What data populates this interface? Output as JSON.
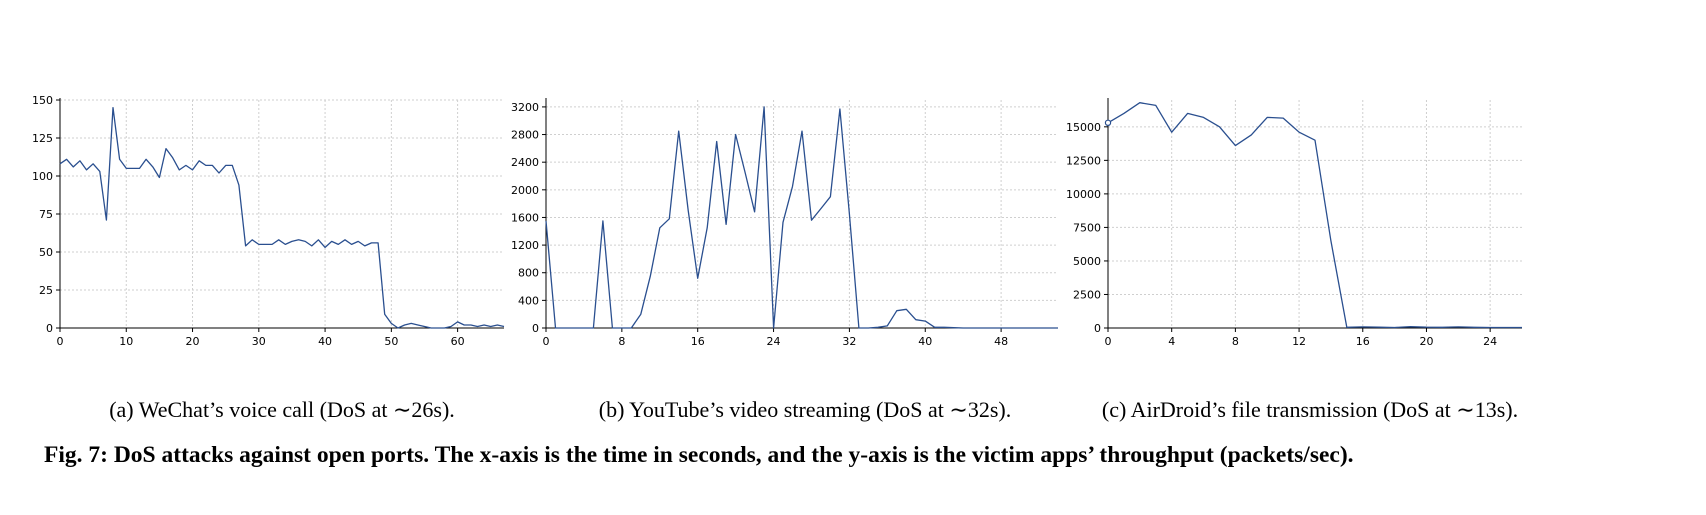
{
  "chart_data": [
    {
      "type": "line",
      "caption": "(a) WeChat’s voice call (DoS at ∼26s).",
      "xlim": [
        0,
        67
      ],
      "ylim": [
        0,
        150
      ],
      "xticks": [
        0,
        10,
        20,
        30,
        40,
        50,
        60
      ],
      "yticks": [
        0,
        25,
        50,
        75,
        100,
        125,
        150
      ],
      "grid": true,
      "start_marker": false,
      "x": [
        0,
        1,
        2,
        3,
        4,
        5,
        6,
        7,
        8,
        9,
        10,
        11,
        12,
        13,
        14,
        15,
        16,
        17,
        18,
        19,
        20,
        21,
        22,
        23,
        24,
        25,
        26,
        27,
        28,
        29,
        30,
        31,
        32,
        33,
        34,
        35,
        36,
        37,
        38,
        39,
        40,
        41,
        42,
        43,
        44,
        45,
        46,
        47,
        48,
        49,
        50,
        51,
        52,
        53,
        54,
        55,
        56,
        57,
        58,
        59,
        60,
        61,
        62,
        63,
        64,
        65,
        66,
        67
      ],
      "y": [
        108,
        111,
        106,
        110,
        104,
        108,
        103,
        71,
        145,
        111,
        105,
        105,
        105,
        111,
        106,
        99,
        118,
        112,
        104,
        107,
        104,
        110,
        107,
        107,
        102,
        107,
        107,
        94,
        54,
        58,
        55,
        55,
        55,
        58,
        55,
        57,
        58,
        57,
        54,
        58,
        53,
        57,
        55,
        58,
        55,
        57,
        54,
        56,
        56,
        9,
        3,
        0,
        2,
        3,
        2,
        1,
        0,
        0,
        0,
        1,
        4,
        2,
        2,
        1,
        2,
        1,
        2,
        1
      ]
    },
    {
      "type": "line",
      "caption": "(b) YouTube’s video streaming (DoS at ∼32s).",
      "xlim": [
        0,
        54
      ],
      "ylim": [
        0,
        3300
      ],
      "xticks": [
        0,
        8,
        16,
        24,
        32,
        40,
        48
      ],
      "yticks": [
        0,
        400,
        800,
        1200,
        1600,
        2000,
        2400,
        2800,
        3200
      ],
      "grid": true,
      "start_marker": false,
      "x": [
        0,
        1,
        2,
        3,
        4,
        5,
        6,
        7,
        8,
        9,
        10,
        11,
        12,
        13,
        14,
        15,
        16,
        17,
        18,
        19,
        20,
        21,
        22,
        23,
        24,
        25,
        26,
        27,
        28,
        29,
        30,
        31,
        32,
        33,
        34,
        35,
        36,
        37,
        38,
        39,
        40,
        41,
        42,
        43,
        44,
        45,
        46,
        47,
        48,
        49,
        50,
        51,
        52,
        53,
        54
      ],
      "y": [
        1550,
        0,
        0,
        0,
        0,
        0,
        1550,
        0,
        0,
        0,
        200,
        750,
        1450,
        1580,
        2850,
        1700,
        720,
        1450,
        2700,
        1500,
        2800,
        2250,
        1680,
        3200,
        0,
        1530,
        2050,
        2850,
        1560,
        1730,
        1900,
        3170,
        1650,
        0,
        0,
        10,
        30,
        250,
        270,
        120,
        100,
        10,
        10,
        5,
        0,
        0,
        0,
        0,
        0,
        0,
        0,
        0,
        0,
        0,
        0
      ]
    },
    {
      "type": "line",
      "caption": "(c) AirDroid’s file transmission (DoS at ∼13s).",
      "xlim": [
        0,
        26
      ],
      "ylim": [
        0,
        17000
      ],
      "xticks": [
        0,
        4,
        8,
        12,
        16,
        20,
        24
      ],
      "yticks": [
        0,
        2500,
        5000,
        7500,
        10000,
        12500,
        15000
      ],
      "grid": true,
      "start_marker": true,
      "x": [
        0,
        1,
        2,
        3,
        4,
        5,
        6,
        7,
        8,
        9,
        10,
        11,
        12,
        13,
        14,
        15,
        16,
        17,
        18,
        19,
        20,
        21,
        22,
        23,
        24,
        25,
        26
      ],
      "y": [
        15300,
        16000,
        16800,
        16600,
        14600,
        16000,
        15700,
        15000,
        13600,
        14400,
        15700,
        15650,
        14600,
        14000,
        6500,
        50,
        80,
        60,
        40,
        100,
        60,
        50,
        80,
        50,
        40,
        40,
        40
      ]
    }
  ],
  "figure_caption": "Fig. 7: DoS attacks against open ports. The x-axis is the time in seconds, and the y-axis is the victim apps’ throughput (packets/sec)."
}
